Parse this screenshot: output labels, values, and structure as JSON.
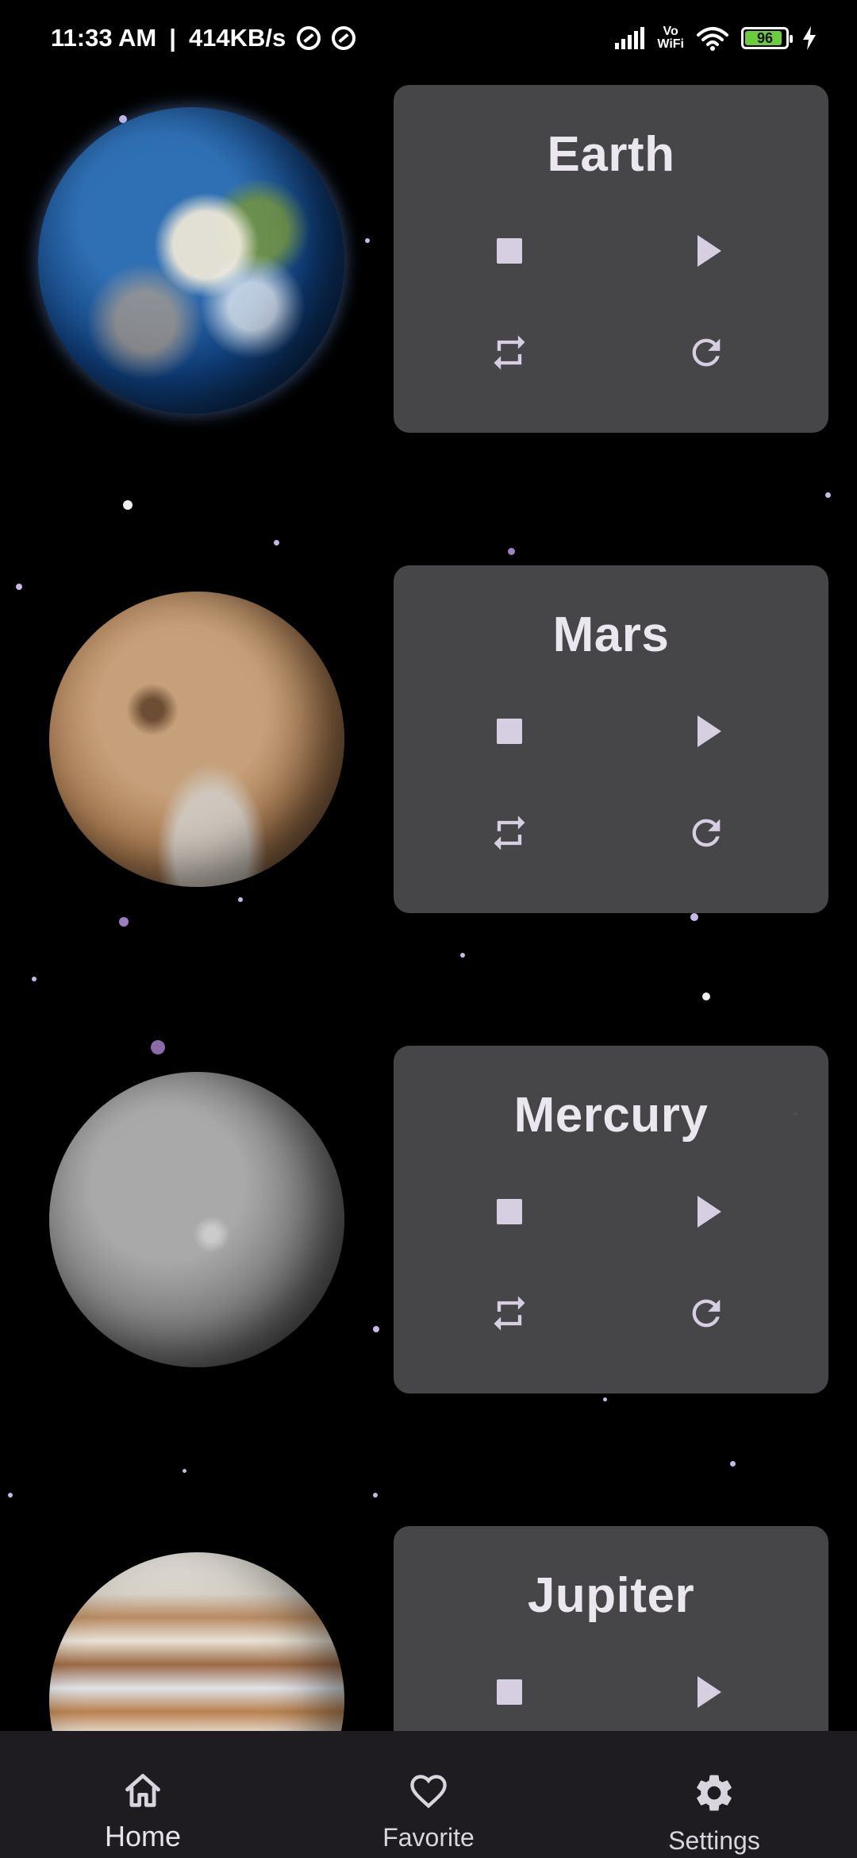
{
  "status_bar": {
    "time": "11:33 AM",
    "speed": "414KB/s",
    "battery_level": "96",
    "vowifi_top": "Vo",
    "vowifi_bottom": "WiFi"
  },
  "planets": [
    {
      "name": "Earth"
    },
    {
      "name": "Mars"
    },
    {
      "name": "Mercury"
    },
    {
      "name": "Jupiter"
    }
  ],
  "bottom_nav": {
    "items": [
      {
        "label": "Home",
        "icon": "home-icon",
        "active": true
      },
      {
        "label": "Favorite",
        "icon": "heart-icon",
        "active": false
      },
      {
        "label": "Settings",
        "icon": "gear-icon",
        "active": false
      }
    ]
  },
  "colors": {
    "background": "#000000",
    "card": "#484749",
    "icon": "#d6cfe2",
    "nav": "#1e1c21",
    "battery": "#6ccc3d"
  }
}
